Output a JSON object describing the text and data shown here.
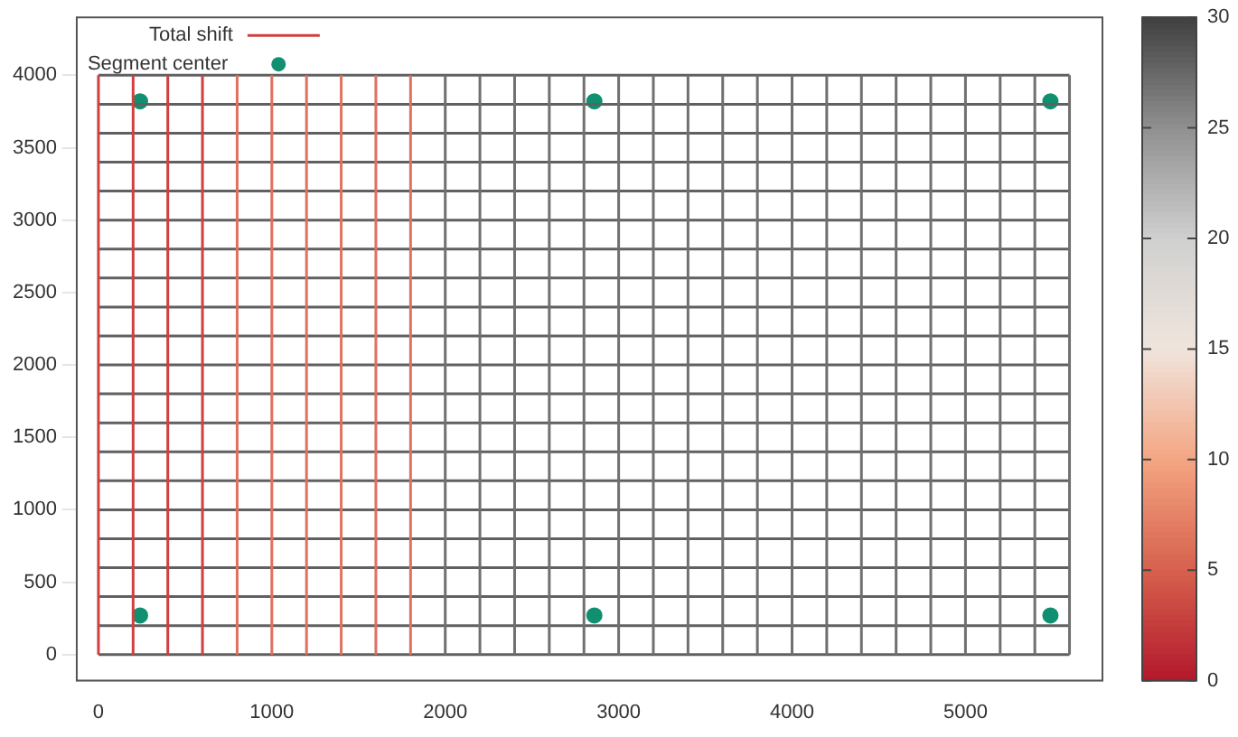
{
  "chart_data": {
    "type": "line",
    "legend": "top left",
    "grid": false,
    "marker": "none",
    "xlim": [
      -125,
      5790
    ],
    "ylim": [
      -180,
      4400
    ],
    "xticks": [
      0,
      1000,
      2000,
      3000,
      4000,
      5000
    ],
    "yticks": [
      0,
      500,
      1000,
      1500,
      2000,
      2500,
      3000,
      3500,
      4000
    ],
    "clim": [
      0,
      30
    ],
    "cticks": [
      0,
      5,
      10,
      15,
      20,
      25,
      30
    ],
    "series": [
      {
        "name": "Total shift",
        "color": "#d04040",
        "x": [
          0,
          0
        ],
        "values": [
          0,
          4000
        ]
      },
      {
        "color": "#d04040",
        "x": [
          200,
          200
        ],
        "values": [
          0,
          4000
        ]
      },
      {
        "color": "#d04040",
        "x": [
          400,
          400
        ],
        "values": [
          0,
          4000
        ]
      },
      {
        "color": "#d04040",
        "x": [
          600,
          600
        ],
        "values": [
          0,
          4000
        ]
      },
      {
        "color": "#e07060",
        "x": [
          800,
          800
        ],
        "values": [
          0,
          4000
        ]
      },
      {
        "color": "#e07060",
        "x": [
          1000,
          1000
        ],
        "values": [
          0,
          4000
        ]
      },
      {
        "color": "#e07060",
        "x": [
          1200,
          1200
        ],
        "values": [
          0,
          4000
        ]
      },
      {
        "color": "#e07060",
        "x": [
          1400,
          1400
        ],
        "values": [
          0,
          4000
        ]
      },
      {
        "color": "#e07060",
        "x": [
          1600,
          1600
        ],
        "values": [
          0,
          4000
        ]
      },
      {
        "color": "#e07060",
        "x": [
          1800,
          1800
        ],
        "values": [
          0,
          4000
        ]
      },
      {
        "color": "#707070",
        "x": [
          2000,
          2000
        ],
        "values": [
          0,
          4000
        ]
      },
      {
        "color": "#707070",
        "x": [
          2200,
          2200
        ],
        "values": [
          0,
          4000
        ]
      },
      {
        "color": "#707070",
        "x": [
          2400,
          2400
        ],
        "values": [
          0,
          4000
        ]
      },
      {
        "color": "#707070",
        "x": [
          2600,
          2600
        ],
        "values": [
          0,
          4000
        ]
      },
      {
        "color": "#707070",
        "x": [
          2800,
          2800
        ],
        "values": [
          0,
          4000
        ]
      },
      {
        "color": "#707070",
        "x": [
          3000,
          3000
        ],
        "values": [
          0,
          4000
        ]
      },
      {
        "color": "#707070",
        "x": [
          3200,
          3200
        ],
        "values": [
          0,
          4000
        ]
      },
      {
        "color": "#707070",
        "x": [
          3400,
          3400
        ],
        "values": [
          0,
          4000
        ]
      },
      {
        "color": "#707070",
        "x": [
          3600,
          3600
        ],
        "values": [
          0,
          4000
        ]
      },
      {
        "color": "#707070",
        "x": [
          3800,
          3800
        ],
        "values": [
          0,
          4000
        ]
      },
      {
        "color": "#707070",
        "x": [
          4000,
          4000
        ],
        "values": [
          0,
          4000
        ]
      },
      {
        "color": "#707070",
        "x": [
          4200,
          4200
        ],
        "values": [
          0,
          4000
        ]
      },
      {
        "color": "#707070",
        "x": [
          4400,
          4400
        ],
        "values": [
          0,
          4000
        ]
      },
      {
        "color": "#707070",
        "x": [
          4600,
          4600
        ],
        "values": [
          0,
          4000
        ]
      },
      {
        "color": "#707070",
        "x": [
          4800,
          4800
        ],
        "values": [
          0,
          4000
        ]
      },
      {
        "color": "#707070",
        "x": [
          5000,
          5000
        ],
        "values": [
          0,
          4000
        ]
      },
      {
        "color": "#707070",
        "x": [
          5200,
          5200
        ],
        "values": [
          0,
          4000
        ]
      },
      {
        "color": "#707070",
        "x": [
          5400,
          5400
        ],
        "values": [
          0,
          4000
        ]
      },
      {
        "color": "#707070",
        "x": [
          5600,
          5600
        ],
        "values": [
          0,
          4000
        ]
      },
      {
        "color": "#606060",
        "x": [
          0,
          5600
        ],
        "values": [
          0,
          0
        ]
      },
      {
        "color": "#606060",
        "x": [
          0,
          5600
        ],
        "values": [
          200,
          200
        ]
      },
      {
        "color": "#606060",
        "x": [
          0,
          5600
        ],
        "values": [
          400,
          400
        ]
      },
      {
        "color": "#606060",
        "x": [
          0,
          5600
        ],
        "values": [
          600,
          600
        ]
      },
      {
        "color": "#606060",
        "x": [
          0,
          5600
        ],
        "values": [
          800,
          800
        ]
      },
      {
        "color": "#606060",
        "x": [
          0,
          5600
        ],
        "values": [
          1000,
          1000
        ]
      },
      {
        "color": "#606060",
        "x": [
          0,
          5600
        ],
        "values": [
          1200,
          1200
        ]
      },
      {
        "color": "#606060",
        "x": [
          0,
          5600
        ],
        "values": [
          1400,
          1400
        ]
      },
      {
        "color": "#606060",
        "x": [
          0,
          5600
        ],
        "values": [
          1600,
          1600
        ]
      },
      {
        "color": "#606060",
        "x": [
          0,
          5600
        ],
        "values": [
          1800,
          1800
        ]
      },
      {
        "color": "#606060",
        "x": [
          0,
          5600
        ],
        "values": [
          2000,
          2000
        ]
      },
      {
        "color": "#606060",
        "x": [
          0,
          5600
        ],
        "values": [
          2200,
          2200
        ]
      },
      {
        "color": "#606060",
        "x": [
          0,
          5600
        ],
        "values": [
          2400,
          2400
        ]
      },
      {
        "color": "#606060",
        "x": [
          0,
          5600
        ],
        "values": [
          2600,
          2600
        ]
      },
      {
        "color": "#606060",
        "x": [
          0,
          5600
        ],
        "values": [
          2800,
          2800
        ]
      },
      {
        "color": "#606060",
        "x": [
          0,
          5600
        ],
        "values": [
          3000,
          3000
        ]
      },
      {
        "color": "#606060",
        "x": [
          0,
          5600
        ],
        "values": [
          3200,
          3200
        ]
      },
      {
        "color": "#606060",
        "x": [
          0,
          5600
        ],
        "values": [
          3400,
          3400
        ]
      },
      {
        "color": "#606060",
        "x": [
          0,
          5600
        ],
        "values": [
          3600,
          3600
        ]
      },
      {
        "color": "#606060",
        "x": [
          0,
          5600
        ],
        "values": [
          3800,
          3800
        ]
      },
      {
        "color": "#606060",
        "x": [
          0,
          5600
        ],
        "values": [
          4000,
          4000
        ]
      },
      {
        "name": "Segment center",
        "type": "scatter",
        "color": "#109070",
        "marker": "circle",
        "x": [
          240,
          2860,
          5490,
          240,
          2860,
          5490
        ],
        "values": [
          3820,
          3820,
          3820,
          270,
          270,
          270
        ]
      }
    ]
  }
}
